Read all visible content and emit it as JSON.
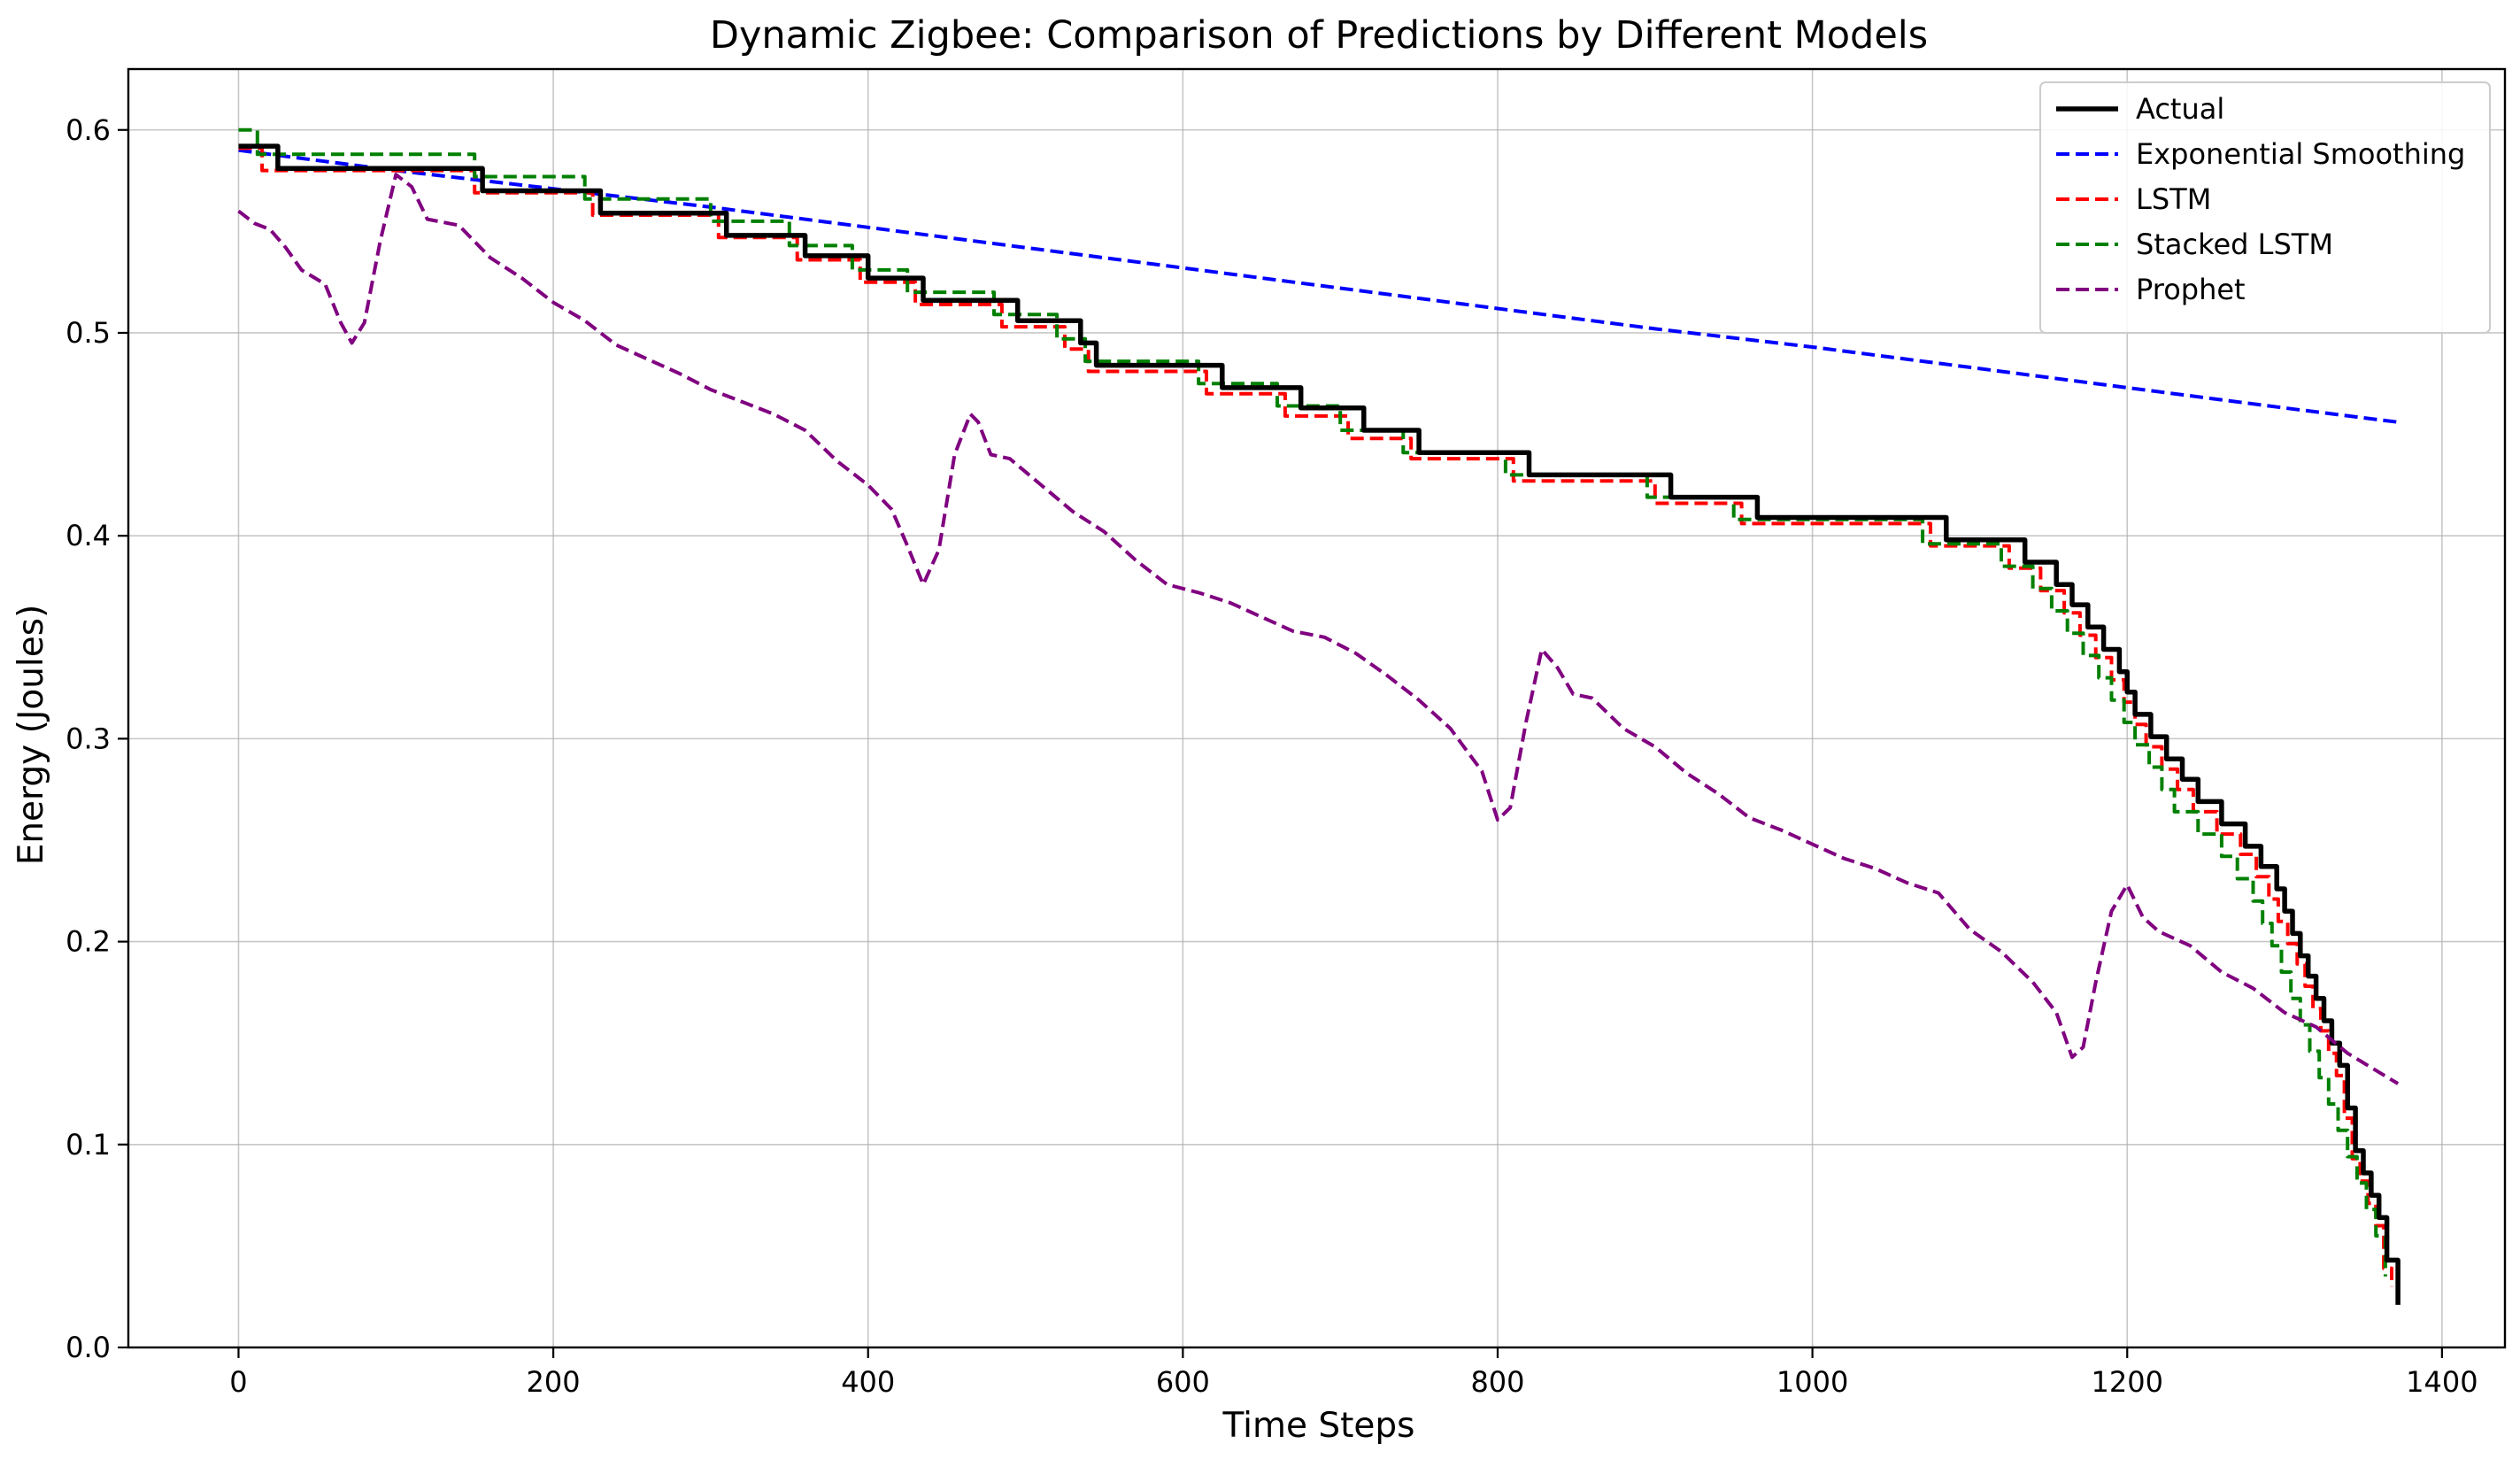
{
  "chart_data": {
    "type": "line",
    "title": "Dynamic Zigbee: Comparison of Predictions by Different Models",
    "xlabel": "Time Steps",
    "ylabel": "Energy (Joules)",
    "xlim": [
      -70,
      1440
    ],
    "ylim": [
      0.0,
      0.63
    ],
    "xticks": [
      0,
      200,
      400,
      600,
      800,
      1000,
      1200,
      1400
    ],
    "yticks": [
      0.0,
      0.1,
      0.2,
      0.3,
      0.4,
      0.5,
      0.6
    ],
    "xtick_labels": [
      "0",
      "200",
      "400",
      "600",
      "800",
      "1000",
      "1200",
      "1400"
    ],
    "ytick_labels": [
      "0.0",
      "0.1",
      "0.2",
      "0.3",
      "0.4",
      "0.5",
      "0.6"
    ],
    "grid": true,
    "legend_position": "top-right",
    "series": [
      {
        "name": "Actual",
        "color": "#000000",
        "style": "solid",
        "step": true,
        "x": [
          0,
          25,
          155,
          230,
          310,
          360,
          400,
          435,
          495,
          535,
          545,
          625,
          675,
          715,
          750,
          820,
          910,
          965,
          1085,
          1135,
          1155,
          1165,
          1175,
          1185,
          1195,
          1200,
          1205,
          1215,
          1225,
          1235,
          1245,
          1260,
          1275,
          1285,
          1295,
          1300,
          1305,
          1310,
          1315,
          1320,
          1325,
          1330,
          1335,
          1340,
          1345,
          1350,
          1355,
          1360,
          1365,
          1372
        ],
        "y": [
          0.592,
          0.581,
          0.57,
          0.559,
          0.548,
          0.538,
          0.527,
          0.516,
          0.506,
          0.495,
          0.484,
          0.473,
          0.463,
          0.452,
          0.441,
          0.43,
          0.419,
          0.409,
          0.398,
          0.387,
          0.376,
          0.366,
          0.355,
          0.344,
          0.333,
          0.323,
          0.312,
          0.301,
          0.29,
          0.28,
          0.269,
          0.258,
          0.247,
          0.237,
          0.226,
          0.215,
          0.204,
          0.193,
          0.183,
          0.172,
          0.161,
          0.15,
          0.139,
          0.118,
          0.097,
          0.086,
          0.075,
          0.064,
          0.043,
          0.021
        ]
      },
      {
        "name": "Exponential Smoothing",
        "color": "#0000ff",
        "style": "dashed",
        "x": [
          0,
          100,
          200,
          300,
          400,
          500,
          600,
          700,
          800,
          900,
          1000,
          1100,
          1200,
          1300,
          1372
        ],
        "y": [
          0.59,
          0.58,
          0.571,
          0.562,
          0.552,
          0.542,
          0.532,
          0.522,
          0.512,
          0.502,
          0.493,
          0.483,
          0.473,
          0.463,
          0.456
        ]
      },
      {
        "name": "LSTM",
        "color": "#ff0000",
        "style": "dashed",
        "step": true,
        "x": [
          0,
          15,
          150,
          225,
          305,
          355,
          395,
          430,
          485,
          525,
          540,
          615,
          665,
          705,
          745,
          810,
          900,
          955,
          1075,
          1125,
          1145,
          1160,
          1170,
          1180,
          1190,
          1198,
          1205,
          1212,
          1222,
          1232,
          1242,
          1257,
          1272,
          1282,
          1290,
          1296,
          1302,
          1308,
          1313,
          1318,
          1323,
          1328,
          1333,
          1338,
          1343,
          1348,
          1353,
          1358,
          1363,
          1368
        ],
        "y": [
          0.591,
          0.58,
          0.569,
          0.558,
          0.547,
          0.536,
          0.525,
          0.514,
          0.503,
          0.492,
          0.481,
          0.47,
          0.459,
          0.448,
          0.438,
          0.427,
          0.416,
          0.406,
          0.395,
          0.384,
          0.373,
          0.362,
          0.351,
          0.34,
          0.329,
          0.318,
          0.307,
          0.296,
          0.285,
          0.275,
          0.264,
          0.253,
          0.243,
          0.232,
          0.221,
          0.21,
          0.199,
          0.189,
          0.178,
          0.167,
          0.156,
          0.145,
          0.134,
          0.113,
          0.093,
          0.082,
          0.071,
          0.06,
          0.039,
          0.03
        ]
      },
      {
        "name": "Stacked LSTM",
        "color": "#008000",
        "style": "dashed",
        "step": true,
        "x": [
          0,
          12,
          150,
          220,
          300,
          350,
          390,
          425,
          480,
          520,
          538,
          610,
          660,
          700,
          740,
          805,
          895,
          950,
          1070,
          1120,
          1140,
          1152,
          1162,
          1172,
          1182,
          1190,
          1198,
          1205,
          1214,
          1222,
          1230,
          1245,
          1260,
          1270,
          1280,
          1286,
          1292,
          1298,
          1304,
          1310,
          1316,
          1322,
          1328,
          1334,
          1340,
          1346,
          1352,
          1358,
          1364
        ],
        "y": [
          0.6,
          0.588,
          0.577,
          0.566,
          0.555,
          0.543,
          0.531,
          0.52,
          0.509,
          0.497,
          0.486,
          0.475,
          0.464,
          0.452,
          0.441,
          0.43,
          0.419,
          0.408,
          0.396,
          0.385,
          0.374,
          0.363,
          0.352,
          0.341,
          0.33,
          0.319,
          0.308,
          0.297,
          0.286,
          0.275,
          0.264,
          0.253,
          0.242,
          0.231,
          0.22,
          0.209,
          0.198,
          0.185,
          0.172,
          0.159,
          0.146,
          0.133,
          0.12,
          0.107,
          0.094,
          0.081,
          0.068,
          0.055,
          0.035
        ]
      },
      {
        "name": "Prophet",
        "color": "#800080",
        "style": "dashed",
        "x": [
          0,
          10,
          20,
          30,
          40,
          55,
          65,
          72,
          80,
          90,
          100,
          110,
          120,
          140,
          160,
          180,
          200,
          220,
          240,
          260,
          280,
          300,
          320,
          340,
          360,
          380,
          400,
          415,
          425,
          435,
          445,
          455,
          465,
          470,
          478,
          490,
          510,
          530,
          550,
          570,
          590,
          610,
          630,
          650,
          670,
          690,
          710,
          730,
          750,
          770,
          790,
          800,
          808,
          818,
          828,
          838,
          848,
          860,
          880,
          900,
          920,
          940,
          960,
          980,
          1000,
          1020,
          1040,
          1060,
          1080,
          1100,
          1120,
          1140,
          1155,
          1165,
          1172,
          1180,
          1190,
          1200,
          1210,
          1220,
          1240,
          1260,
          1280,
          1300,
          1320,
          1340,
          1372
        ],
        "y": [
          0.56,
          0.554,
          0.551,
          0.542,
          0.531,
          0.524,
          0.505,
          0.495,
          0.505,
          0.545,
          0.578,
          0.572,
          0.556,
          0.553,
          0.537,
          0.527,
          0.515,
          0.506,
          0.494,
          0.487,
          0.48,
          0.472,
          0.466,
          0.46,
          0.452,
          0.437,
          0.425,
          0.413,
          0.395,
          0.376,
          0.393,
          0.44,
          0.46,
          0.456,
          0.44,
          0.438,
          0.425,
          0.412,
          0.402,
          0.388,
          0.376,
          0.372,
          0.367,
          0.36,
          0.353,
          0.35,
          0.342,
          0.331,
          0.319,
          0.305,
          0.284,
          0.26,
          0.266,
          0.308,
          0.344,
          0.335,
          0.322,
          0.32,
          0.305,
          0.296,
          0.283,
          0.273,
          0.261,
          0.255,
          0.248,
          0.241,
          0.236,
          0.229,
          0.224,
          0.206,
          0.195,
          0.18,
          0.165,
          0.143,
          0.148,
          0.18,
          0.215,
          0.228,
          0.212,
          0.205,
          0.198,
          0.185,
          0.177,
          0.165,
          0.158,
          0.145,
          0.13
        ]
      }
    ]
  }
}
